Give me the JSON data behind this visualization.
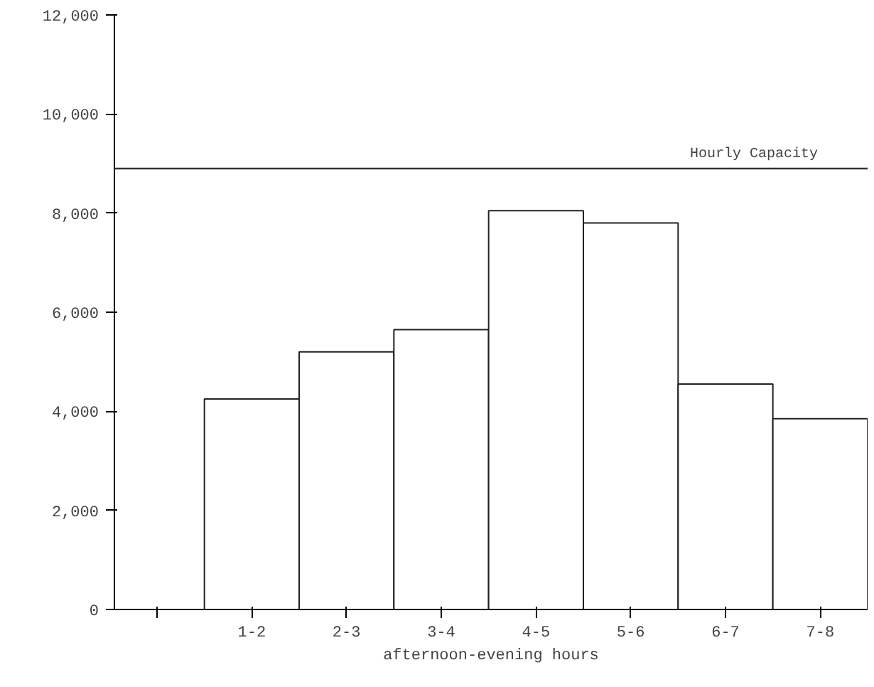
{
  "chart_data": {
    "type": "bar",
    "xlabel": "afternoon-evening hours",
    "categories": [
      null,
      "1-2",
      "2-3",
      "3-4",
      "4-5",
      "5-6",
      "6-7",
      "7-8"
    ],
    "values": [
      null,
      4250,
      5200,
      5650,
      8050,
      7800,
      4550,
      3850
    ],
    "color": "#ffffff",
    "ylim": [
      0,
      12000
    ],
    "yticks": [
      {
        "value": 0,
        "label": "0"
      },
      {
        "value": 2000,
        "label": "2,000"
      },
      {
        "value": 4000,
        "label": "4,000"
      },
      {
        "value": 6000,
        "label": "6,000"
      },
      {
        "value": 8000,
        "label": "8,000"
      },
      {
        "value": 10000,
        "label": "10,000"
      },
      {
        "value": 12000,
        "label": "12,000"
      }
    ],
    "ref_lines": [
      {
        "axis": "y",
        "value": 8900,
        "label": "Hourly Capacity",
        "color": "#333333"
      }
    ],
    "grid": false
  }
}
